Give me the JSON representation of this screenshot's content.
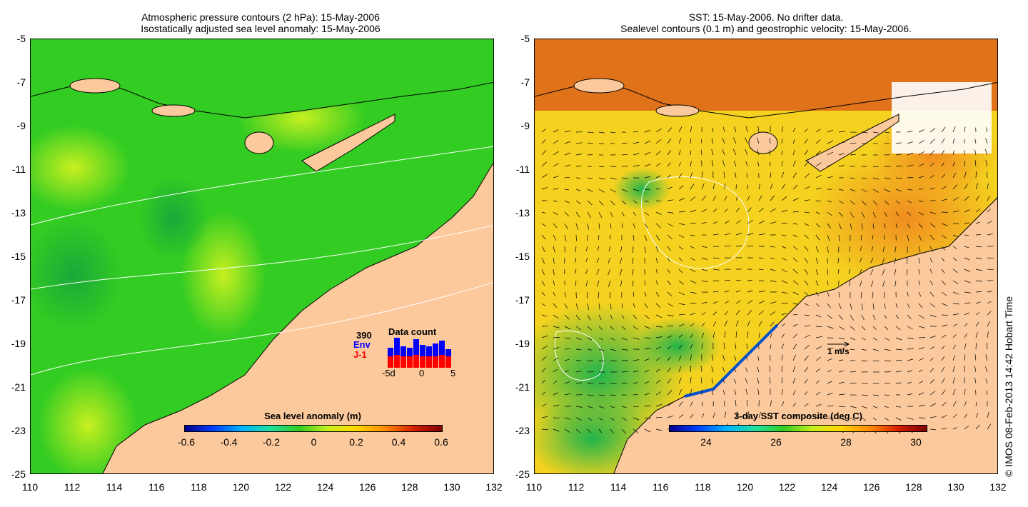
{
  "left_panel": {
    "title_line1": "Atmospheric pressure contours (2 hPa): 15-May-2006",
    "title_line2": "Isostatically adjusted sea level anomaly: 15-May-2006",
    "colorbar_title": "Sea level anomaly (m)",
    "colorbar_ticks": [
      "-0.6",
      "-0.4",
      "-0.2",
      "0",
      "0.2",
      "0.4",
      "0.6"
    ],
    "histogram": {
      "title": "Data count",
      "total": "390",
      "series1": "Env",
      "series2": "J-1",
      "axis_ticks": [
        "-5d",
        "0",
        "5"
      ],
      "series1_color": "#0000ff",
      "series2_color": "#ff0000"
    }
  },
  "right_panel": {
    "title_line1": "SST: 15-May-2006. No drifter data.",
    "title_line2": "Sealevel contours (0.1 m) and geostrophic velocity: 15-May-2006.",
    "colorbar_title": "3-day SST composite (deg C)",
    "colorbar_ticks": [
      "24",
      "26",
      "28",
      "30"
    ],
    "vector_scale_label": "1 m/s"
  },
  "axes": {
    "lat_ticks": [
      "-5",
      "-7",
      "-9",
      "-11",
      "-13",
      "-15",
      "-17",
      "-19",
      "-21",
      "-23",
      "-25"
    ],
    "lon_ticks": [
      "110",
      "112",
      "114",
      "116",
      "118",
      "120",
      "122",
      "124",
      "126",
      "128",
      "130",
      "132"
    ]
  },
  "copyright": "© IMOS 08-Feb-2013 14:42 Hobart Time",
  "colors": {
    "land": "#fbc99c",
    "sla_ocean": "#33cc22",
    "sst_ocean": "#f4d21f",
    "sst_warm": "#e0721a"
  }
}
